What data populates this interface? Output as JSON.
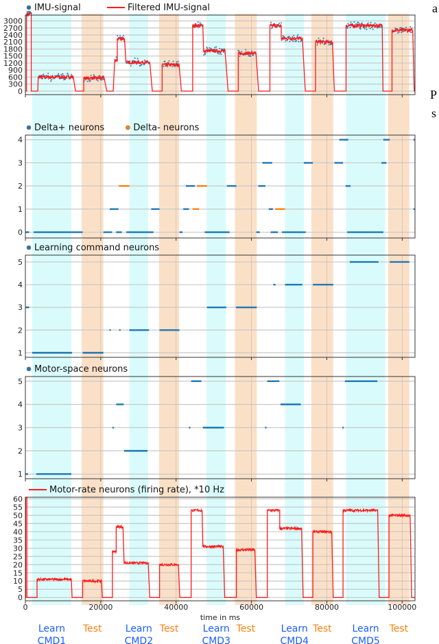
{
  "margin_text": [
    "a",
    "P",
    "s"
  ],
  "colors": {
    "learn_band": "#d9fbfb",
    "test_band": "#fbe0c8",
    "imu_points": "#2a7ab5",
    "filtered": "#ff1a1a",
    "delta_plus": "#1f77b4",
    "delta_minus": "#ff7f0e",
    "learn_label": "#1a5cff",
    "test_label": "#ff7f0e"
  },
  "x_axis": {
    "label": "time in ms",
    "ticks": [
      0,
      20000,
      40000,
      60000,
      80000,
      100000
    ],
    "tick_labels": [
      "0",
      "20000",
      "40000",
      "60000",
      "80000",
      "100000"
    ],
    "range": [
      0,
      103400
    ]
  },
  "phases": [
    {
      "type": "learn",
      "label1": "Learn",
      "label2": "CMD1",
      "start": 1800,
      "end": 12200
    },
    {
      "type": "test",
      "label1": "Test",
      "start": 14900,
      "end": 20700
    },
    {
      "type": "learn",
      "label1": "Learn",
      "label2": "CMD2",
      "start": 27600,
      "end": 32600
    },
    {
      "type": "test",
      "label1": "Test",
      "start": 35500,
      "end": 40800
    },
    {
      "type": "learn",
      "label1": "Learn",
      "label2": "CMD3",
      "start": 48100,
      "end": 53200
    },
    {
      "type": "test",
      "label1": "Test",
      "start": 55600,
      "end": 61400
    },
    {
      "type": "learn",
      "label1": "Learn",
      "label2": "CMD4",
      "start": 68900,
      "end": 73900
    },
    {
      "type": "test",
      "label1": "Test",
      "start": 75900,
      "end": 81700
    },
    {
      "type": "learn",
      "label1": "Learn",
      "label2": "CMD5",
      "start": 85100,
      "end": 95500
    },
    {
      "type": "test",
      "label1": "Test",
      "start": 96300,
      "end": 101900
    }
  ],
  "chart_data": [
    {
      "type": "line",
      "legend": [
        "IMU-signal",
        "Filtered IMU-signal"
      ],
      "legend_placement": "top-left",
      "ylim": [
        -150,
        3250
      ],
      "yticks": [
        0,
        300,
        600,
        900,
        1200,
        1500,
        1800,
        2100,
        2400,
        2700,
        3000
      ],
      "grid": true,
      "noise": 70,
      "segments": [
        [
          0,
          300,
          0
        ],
        [
          300,
          1560,
          3300
        ],
        [
          1560,
          3300,
          0
        ],
        [
          3400,
          12700,
          600
        ],
        [
          13300,
          15500,
          0
        ],
        [
          15500,
          20900,
          560
        ],
        [
          21600,
          23300,
          0
        ],
        [
          23700,
          24400,
          1300
        ],
        [
          24400,
          26300,
          2250
        ],
        [
          26700,
          33000,
          1230
        ],
        [
          33700,
          36300,
          0
        ],
        [
          36300,
          40800,
          1120
        ],
        [
          41400,
          44400,
          0
        ],
        [
          44400,
          47100,
          2800
        ],
        [
          47300,
          53000,
          1720
        ],
        [
          53800,
          56500,
          0
        ],
        [
          56500,
          61200,
          1620
        ],
        [
          61900,
          64900,
          0
        ],
        [
          64900,
          67900,
          2800
        ],
        [
          67900,
          73500,
          2250
        ],
        [
          74300,
          77000,
          0
        ],
        [
          77000,
          81500,
          2100
        ],
        [
          82000,
          85100,
          0
        ],
        [
          85100,
          94700,
          2800
        ],
        [
          94900,
          97300,
          0
        ],
        [
          97300,
          102800,
          2600
        ],
        [
          103200,
          103400,
          0
        ]
      ]
    },
    {
      "type": "scatter",
      "legend": [
        "Delta+ neurons",
        "Delta- neurons"
      ],
      "legend_placement": "top-left",
      "ylim": [
        -0.25,
        4.2
      ],
      "yticks": [
        0,
        1,
        2,
        3,
        4
      ],
      "grid": true,
      "series": [
        {
          "name": "Delta+ neurons",
          "spikes": [
            [
              0,
              0,
              1000
            ],
            [
              0,
              2200,
              15200
            ],
            [
              0,
              20700,
              23000
            ],
            [
              0,
              24100,
              25600
            ],
            [
              0,
              26800,
              34000
            ],
            [
              0,
              40900,
              41700
            ],
            [
              0,
              47600,
              54200
            ],
            [
              0,
              61300,
              62200
            ],
            [
              0,
              65100,
              67000
            ],
            [
              0,
              68100,
              74400
            ],
            [
              0,
              85400,
              95000
            ],
            [
              1,
              22400,
              24700
            ],
            [
              1,
              33400,
              35600
            ],
            [
              1,
              41900,
              43400
            ],
            [
              1,
              64600,
              65700
            ],
            [
              1,
              103000,
              103300
            ],
            [
              2,
              42600,
              45000
            ],
            [
              2,
              53500,
              56000
            ],
            [
              2,
              61800,
              63700
            ],
            [
              2,
              85000,
              86300
            ],
            [
              3,
              62900,
              65500
            ],
            [
              3,
              73900,
              76300
            ],
            [
              3,
              82000,
              84300
            ],
            [
              3,
              94500,
              95800
            ],
            [
              4,
              83300,
              85700
            ],
            [
              4,
              95000,
              96700
            ],
            [
              4,
              103000,
              103300
            ]
          ]
        },
        {
          "name": "Delta- neurons",
          "spikes": [
            [
              2,
              24800,
              27600
            ],
            [
              2,
              45500,
              48200
            ],
            [
              1,
              44400,
              46100
            ],
            [
              1,
              66300,
              68900
            ]
          ]
        }
      ]
    },
    {
      "type": "scatter",
      "legend": [
        "Learning command neurons"
      ],
      "legend_placement": "top-left",
      "ylim": [
        0.8,
        5.3
      ],
      "yticks": [
        1,
        2,
        3,
        4,
        5
      ],
      "grid": true,
      "series": [
        {
          "name": "Learning command neurons",
          "spikes": [
            [
              3,
              0,
              1000
            ],
            [
              1,
              1800,
              12400
            ],
            [
              1,
              15200,
              20700
            ],
            [
              2,
              22300,
              22600
            ],
            [
              2,
              24900,
              25200
            ],
            [
              2,
              27600,
              32800
            ],
            [
              2,
              35600,
              40900
            ],
            [
              3,
              48200,
              53300
            ],
            [
              3,
              55900,
              61400
            ],
            [
              4,
              65800,
              66400
            ],
            [
              4,
              68900,
              73500
            ],
            [
              4,
              76300,
              81700
            ],
            [
              5,
              86100,
              93700
            ],
            [
              5,
              96700,
              101900
            ]
          ]
        }
      ]
    },
    {
      "type": "scatter",
      "legend": [
        "Motor-space neurons"
      ],
      "legend_placement": "top-left",
      "ylim": [
        0.8,
        5.2
      ],
      "yticks": [
        1,
        2,
        3,
        4,
        5
      ],
      "grid": true,
      "series": [
        {
          "name": "Motor-space neurons",
          "spikes": [
            [
              1,
              0,
              700
            ],
            [
              1,
              2900,
              12200
            ],
            [
              3,
              23100,
              23500
            ],
            [
              4,
              24100,
              26100
            ],
            [
              2,
              26200,
              32400
            ],
            [
              3,
              43400,
              43800
            ],
            [
              5,
              44000,
              46700
            ],
            [
              3,
              47100,
              52700
            ],
            [
              3,
              63600,
              64000
            ],
            [
              5,
              64200,
              67400
            ],
            [
              4,
              67700,
              73100
            ],
            [
              3,
              84100,
              84500
            ],
            [
              5,
              84800,
              93400
            ]
          ]
        }
      ]
    },
    {
      "type": "line",
      "legend": [
        "Motor-rate neurons (firing rate), *10 Hz"
      ],
      "legend_placement": "top-left",
      "ylim": [
        -2,
        61
      ],
      "yticks": [
        0,
        5,
        10,
        15,
        20,
        25,
        30,
        35,
        40,
        45,
        50,
        55,
        60
      ],
      "grid": true,
      "noise": 0.7,
      "segments": [
        [
          0,
          100,
          0
        ],
        [
          100,
          400,
          61
        ],
        [
          400,
          3100,
          0
        ],
        [
          3100,
          12200,
          11
        ],
        [
          12400,
          15200,
          0
        ],
        [
          15200,
          20200,
          10
        ],
        [
          20400,
          23100,
          0
        ],
        [
          23100,
          24100,
          28
        ],
        [
          24100,
          25900,
          43
        ],
        [
          26200,
          32600,
          21
        ],
        [
          33000,
          35600,
          0
        ],
        [
          35600,
          40600,
          20
        ],
        [
          41000,
          44000,
          0
        ],
        [
          44000,
          46900,
          53
        ],
        [
          47100,
          52500,
          31
        ],
        [
          52900,
          56000,
          0
        ],
        [
          56000,
          60900,
          29
        ],
        [
          61300,
          64200,
          0
        ],
        [
          64200,
          67500,
          53
        ],
        [
          67500,
          73300,
          42
        ],
        [
          73700,
          76300,
          0
        ],
        [
          76300,
          81300,
          40
        ],
        [
          81700,
          84300,
          0
        ],
        [
          84300,
          93500,
          53
        ],
        [
          93900,
          96500,
          0
        ],
        [
          96500,
          102100,
          50
        ],
        [
          102500,
          103400,
          0
        ]
      ]
    }
  ]
}
